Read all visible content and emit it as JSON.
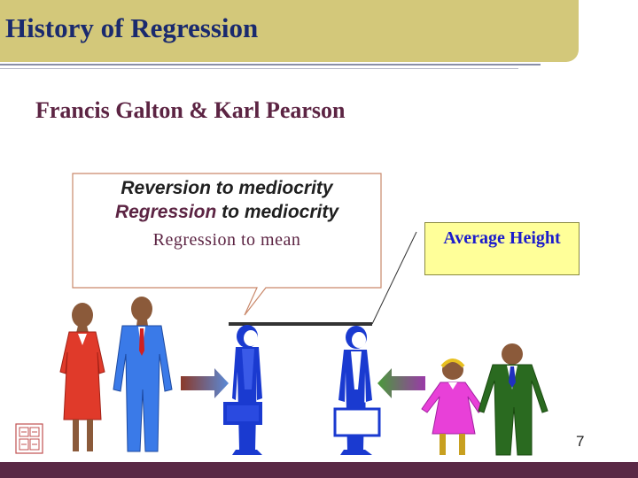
{
  "slide": {
    "title": "History of Regression",
    "subtitle": "Francis Galton & Karl Pearson",
    "page_number": "7"
  },
  "callout": {
    "line1": "Reversion to mediocrity",
    "line2_highlight": "Regression",
    "line2_rest": " to mediocrity",
    "line3": "Regression to mean"
  },
  "average_height": {
    "label": "Average Height"
  },
  "colors": {
    "title_bar": "#d3c87a",
    "title_text": "#1a2a6e",
    "subtitle_text": "#5c2443",
    "bottom_bar": "#5a2845",
    "avg_box_fill": "#ffff99",
    "avg_box_text": "#1c1ccc"
  },
  "icons": [
    "tall-woman-icon",
    "tall-man-icon",
    "average-woman-icon",
    "average-man-icon",
    "short-woman-icon",
    "short-man-icon",
    "arrow-right-icon",
    "arrow-left-icon",
    "logo-stamp-icon"
  ]
}
